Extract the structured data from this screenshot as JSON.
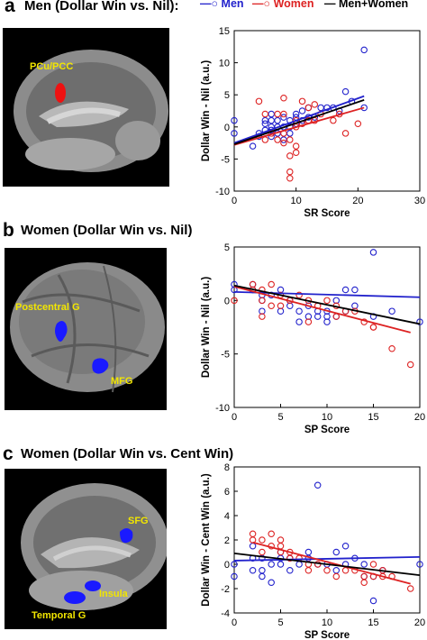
{
  "legend": {
    "men": "Men",
    "women": "Women",
    "combined": "Men+Women"
  },
  "colors": {
    "men": "#2222cc",
    "women": "#dd2222",
    "combined": "#000000",
    "roi_a": "#ee1111",
    "roi_bc": "#1a1aff",
    "label": "#f2e600"
  },
  "panels": [
    {
      "letter": "a",
      "title": "Men (Dollar Win vs. Nil):",
      "regions": [
        "PCu/PCC"
      ]
    },
    {
      "letter": "b",
      "title": "Women (Dollar Win vs. Nil)",
      "regions": [
        "Postcentral G",
        "MFG"
      ]
    },
    {
      "letter": "c",
      "title": "Women (Dollar Win vs. Cent Win)",
      "regions": [
        "SFG",
        "Insula",
        "Temporal G"
      ]
    }
  ],
  "chart_data": [
    {
      "type": "scatter",
      "xlabel": "SR Score",
      "ylabel": "Dollar Win - Nil (a.u.)",
      "xlim": [
        0,
        30
      ],
      "ylim": [
        -10,
        15
      ],
      "xticks": [
        0,
        10,
        20,
        30
      ],
      "yticks": [
        -10,
        -5,
        0,
        5,
        10,
        15
      ],
      "series": [
        {
          "name": "Men",
          "points": [
            [
              0,
              1
            ],
            [
              0,
              -1
            ],
            [
              3,
              -3
            ],
            [
              4,
              -1
            ],
            [
              4,
              -1.5
            ],
            [
              5,
              -0.5
            ],
            [
              5,
              0.5
            ],
            [
              5,
              1
            ],
            [
              6,
              0
            ],
            [
              6,
              -0.5
            ],
            [
              6,
              1
            ],
            [
              6,
              2
            ],
            [
              6,
              -1.5
            ],
            [
              7,
              0
            ],
            [
              7,
              1
            ],
            [
              7,
              -1
            ],
            [
              8,
              0
            ],
            [
              8,
              1.5
            ],
            [
              8,
              -2
            ],
            [
              9,
              1
            ],
            [
              9,
              0
            ],
            [
              9,
              -1
            ],
            [
              10,
              2
            ],
            [
              10,
              0.5
            ],
            [
              10,
              1.5
            ],
            [
              11,
              1
            ],
            [
              11,
              2.5
            ],
            [
              12,
              3
            ],
            [
              12,
              1.5
            ],
            [
              13,
              1.5
            ],
            [
              14,
              3
            ],
            [
              15,
              3
            ],
            [
              16,
              3
            ],
            [
              17,
              2.5
            ],
            [
              18,
              5.5
            ],
            [
              19,
              4
            ],
            [
              21,
              12
            ],
            [
              21,
              3
            ]
          ],
          "fit": [
            [
              0,
              -2.5
            ],
            [
              21,
              4.8
            ]
          ]
        },
        {
          "name": "Women",
          "points": [
            [
              4,
              4
            ],
            [
              5,
              2
            ],
            [
              5,
              -2
            ],
            [
              6,
              -1
            ],
            [
              7,
              2
            ],
            [
              7,
              -2
            ],
            [
              8,
              4.5
            ],
            [
              8,
              2
            ],
            [
              8,
              -1
            ],
            [
              8,
              -2.5
            ],
            [
              9,
              -4.5
            ],
            [
              9,
              -7
            ],
            [
              9,
              -8
            ],
            [
              9,
              -2
            ],
            [
              10,
              -3
            ],
            [
              10,
              -4
            ],
            [
              10,
              1
            ],
            [
              10,
              0
            ],
            [
              11,
              4
            ],
            [
              11,
              0.5
            ],
            [
              12,
              3
            ],
            [
              12,
              1
            ],
            [
              13,
              1
            ],
            [
              13,
              3.5
            ],
            [
              14,
              2
            ],
            [
              16,
              1
            ],
            [
              17,
              2
            ],
            [
              18,
              -1
            ],
            [
              20,
              0.5
            ]
          ],
          "fit": [
            [
              0,
              -2.8
            ],
            [
              21,
              3.0
            ]
          ]
        },
        {
          "name": "Men+Women",
          "fit": [
            [
              0,
              -2.7
            ],
            [
              21,
              4.2
            ]
          ]
        }
      ]
    },
    {
      "type": "scatter",
      "xlabel": "SP Score",
      "ylabel": "Dollar Win - Nil (a.u.)",
      "xlim": [
        0,
        20
      ],
      "ylim": [
        -10,
        5
      ],
      "xticks": [
        0,
        5,
        10,
        15,
        20
      ],
      "yticks": [
        -10,
        -5,
        0,
        5
      ],
      "series": [
        {
          "name": "Men",
          "points": [
            [
              0,
              1.5
            ],
            [
              0,
              1
            ],
            [
              2,
              1
            ],
            [
              2,
              1.5
            ],
            [
              3,
              0
            ],
            [
              3,
              -1
            ],
            [
              3,
              0.5
            ],
            [
              4,
              0.5
            ],
            [
              5,
              1
            ],
            [
              5,
              -1
            ],
            [
              6,
              0
            ],
            [
              6,
              -0.5
            ],
            [
              7,
              -1
            ],
            [
              7,
              -2
            ],
            [
              8,
              -0.5
            ],
            [
              8,
              -1.5
            ],
            [
              9,
              -1
            ],
            [
              9,
              -1.5
            ],
            [
              10,
              -1
            ],
            [
              10,
              -2
            ],
            [
              10,
              -1.5
            ],
            [
              11,
              0
            ],
            [
              11,
              -1.5
            ],
            [
              12,
              -1
            ],
            [
              12,
              1
            ],
            [
              13,
              1
            ],
            [
              13,
              -0.5
            ],
            [
              15,
              -1.5
            ],
            [
              15,
              4.5
            ],
            [
              17,
              -1
            ],
            [
              20,
              -2
            ]
          ],
          "fit": [
            [
              0,
              0.8
            ],
            [
              20,
              0.3
            ]
          ]
        },
        {
          "name": "Women",
          "points": [
            [
              0,
              0
            ],
            [
              2,
              1.5
            ],
            [
              2,
              1
            ],
            [
              3,
              1
            ],
            [
              3,
              0
            ],
            [
              3,
              -1.5
            ],
            [
              4,
              1.5
            ],
            [
              4,
              -0.5
            ],
            [
              5,
              -0.5
            ],
            [
              5,
              0.5
            ],
            [
              6,
              0
            ],
            [
              7,
              0.5
            ],
            [
              8,
              0
            ],
            [
              8,
              -2
            ],
            [
              9,
              -0.5
            ],
            [
              10,
              0
            ],
            [
              11,
              -1.5
            ],
            [
              11,
              -0.5
            ],
            [
              12,
              -1
            ],
            [
              13,
              -1
            ],
            [
              14,
              -2
            ],
            [
              15,
              -2.5
            ],
            [
              15,
              -2.5
            ],
            [
              17,
              -4.5
            ],
            [
              19,
              -6
            ]
          ],
          "fit": [
            [
              0,
              1.3
            ],
            [
              19,
              -3.0
            ]
          ]
        },
        {
          "name": "Men+Women",
          "fit": [
            [
              0,
              1.4
            ],
            [
              20,
              -2.2
            ]
          ]
        }
      ]
    },
    {
      "type": "scatter",
      "xlabel": "SP Score",
      "ylabel": "Dollar Win - Cent Win (a.u.)",
      "xlim": [
        0,
        20
      ],
      "ylim": [
        -4,
        8
      ],
      "xticks": [
        0,
        5,
        10,
        15,
        20
      ],
      "yticks": [
        -4,
        -2,
        0,
        2,
        4,
        6,
        8
      ],
      "series": [
        {
          "name": "Men",
          "points": [
            [
              0,
              0
            ],
            [
              0,
              -1
            ],
            [
              2,
              0.5
            ],
            [
              2,
              -0.5
            ],
            [
              2,
              1.5
            ],
            [
              3,
              -0.5
            ],
            [
              3,
              -1
            ],
            [
              3,
              0.5
            ],
            [
              4,
              0
            ],
            [
              4,
              -1.5
            ],
            [
              5,
              0
            ],
            [
              5,
              0.5
            ],
            [
              5,
              1
            ],
            [
              6,
              -0.5
            ],
            [
              6,
              0.5
            ],
            [
              7,
              0
            ],
            [
              8,
              1
            ],
            [
              8,
              0.5
            ],
            [
              9,
              0
            ],
            [
              9,
              6.5
            ],
            [
              10,
              0
            ],
            [
              11,
              1
            ],
            [
              11,
              -0.5
            ],
            [
              12,
              1.5
            ],
            [
              12,
              0
            ],
            [
              13,
              0.5
            ],
            [
              14,
              0
            ],
            [
              14,
              -1
            ],
            [
              15,
              -1
            ],
            [
              15,
              -3
            ],
            [
              16,
              -0.5
            ],
            [
              20,
              0
            ]
          ],
          "fit": [
            [
              0,
              0.3
            ],
            [
              20,
              0.6
            ]
          ]
        },
        {
          "name": "Women",
          "points": [
            [
              2,
              2.5
            ],
            [
              2,
              2
            ],
            [
              3,
              2
            ],
            [
              3,
              1
            ],
            [
              4,
              1.5
            ],
            [
              4,
              2.5
            ],
            [
              5,
              1
            ],
            [
              5,
              1.5
            ],
            [
              5,
              2
            ],
            [
              6,
              1
            ],
            [
              6,
              0.5
            ],
            [
              7,
              0.5
            ],
            [
              8,
              -0.5
            ],
            [
              8,
              0
            ],
            [
              9,
              0
            ],
            [
              10,
              -0.5
            ],
            [
              11,
              -1
            ],
            [
              12,
              -0.5
            ],
            [
              13,
              -0.5
            ],
            [
              14,
              -1
            ],
            [
              14,
              -1.5
            ],
            [
              15,
              -1
            ],
            [
              15,
              0
            ],
            [
              16,
              -0.5
            ],
            [
              16,
              -1
            ],
            [
              17,
              -1
            ],
            [
              19,
              -2
            ]
          ],
          "fit": [
            [
              2,
              1.8
            ],
            [
              19,
              -1.6
            ]
          ]
        },
        {
          "name": "Men+Women",
          "fit": [
            [
              0,
              0.9
            ],
            [
              20,
              -0.9
            ]
          ]
        }
      ]
    }
  ]
}
